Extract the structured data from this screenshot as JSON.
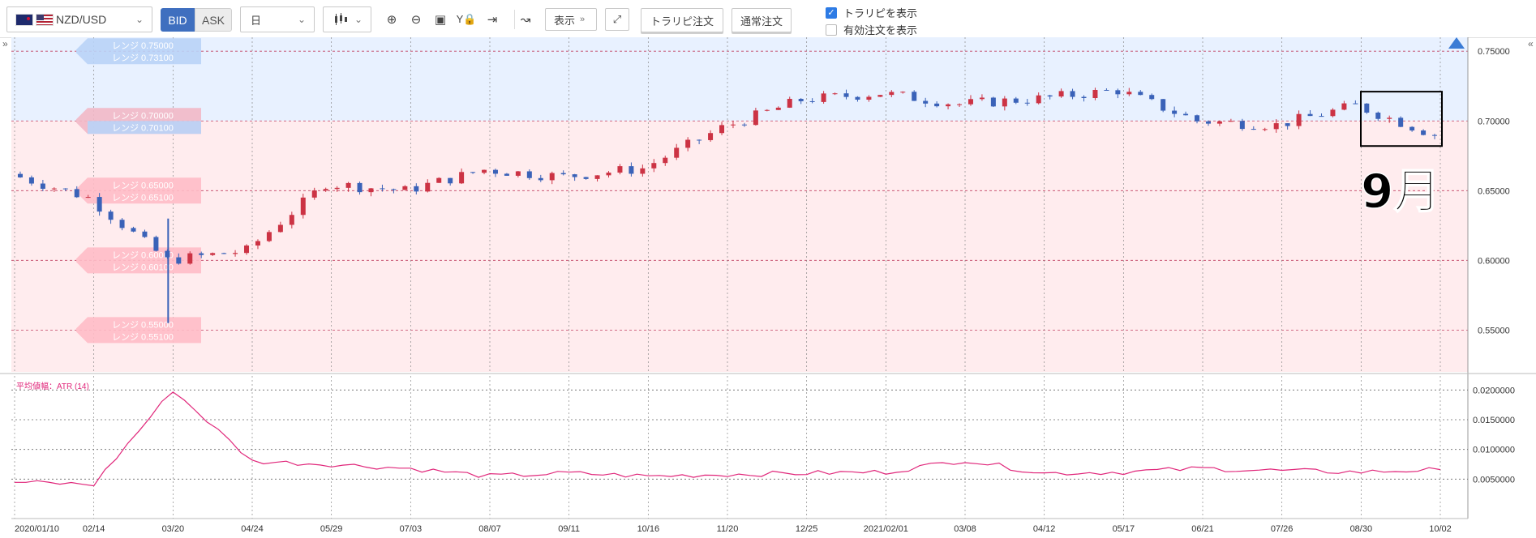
{
  "toolbar": {
    "symbol": "NZD/USD",
    "bid_label": "BID",
    "ask_label": "ASK",
    "period": "日",
    "display_label": "表示",
    "trap_order_label": "トラリピ注文",
    "normal_order_label": "通常注文",
    "show_trap": "トラリピを表示",
    "show_active": "有効注文を表示",
    "show_trap_checked": true,
    "show_active_checked": false
  },
  "annotation": "9月",
  "price_ticks": [
    "0.75000",
    "0.70000",
    "0.65000",
    "0.60000",
    "0.55000"
  ],
  "atr_ticks": [
    "0.0200000",
    "0.0150000",
    "0.0100000",
    "0.0050000"
  ],
  "date_ticks": [
    "2020/01/10",
    "02/14",
    "03/20",
    "04/24",
    "05/29",
    "07/03",
    "08/07",
    "09/11",
    "10/16",
    "11/20",
    "12/25",
    "2021/02/01",
    "03/08",
    "04/12",
    "05/17",
    "06/21",
    "07/26",
    "08/30",
    "10/02"
  ],
  "range_tags": [
    {
      "a": "レンジ 0.75000",
      "b": "レンジ 0.73100",
      "zone": "blue"
    },
    {
      "a": "レンジ 0.70000",
      "b": "レンジ 0.70100",
      "zone": "mix"
    },
    {
      "a": "レンジ 0.65000",
      "b": "レンジ 0.65100",
      "zone": "pink"
    },
    {
      "a": "レンジ 0.60000",
      "b": "レンジ 0.60100",
      "zone": "pink"
    },
    {
      "a": "レンジ 0.55000",
      "b": "レンジ 0.55100",
      "zone": "pink"
    }
  ],
  "atr_label": "平均値幅：ATR (14)",
  "colors": {
    "up": "#cc3344",
    "down": "#3a62b8",
    "atr": "#e0267a",
    "blue_zone": "#e8f1ff",
    "pink_zone": "#ffecee"
  },
  "chart_data": {
    "type": "candlestick",
    "ylim": [
      0.52,
      0.76
    ],
    "x": [
      "2020/01/10",
      "02/14",
      "03/20",
      "04/24",
      "05/29",
      "07/03",
      "08/07",
      "09/11",
      "10/16",
      "11/20",
      "12/25",
      "2021/02/01",
      "03/08",
      "04/12",
      "05/17",
      "06/21",
      "07/26",
      "08/30",
      "10/02"
    ],
    "close": [
      0.662,
      0.645,
      0.6,
      0.607,
      0.655,
      0.65,
      0.665,
      0.66,
      0.666,
      0.695,
      0.715,
      0.72,
      0.712,
      0.716,
      0.722,
      0.7,
      0.697,
      0.711,
      0.69
    ],
    "atr": {
      "name": "平均値幅：ATR (14)",
      "ylim": [
        0.0,
        0.021
      ],
      "values": [
        0.0045,
        0.0041,
        0.02,
        0.008,
        0.0075,
        0.0068,
        0.0055,
        0.006,
        0.0055,
        0.0058,
        0.006,
        0.0062,
        0.0082,
        0.006,
        0.0062,
        0.0068,
        0.0064,
        0.0062,
        0.0066
      ]
    }
  }
}
